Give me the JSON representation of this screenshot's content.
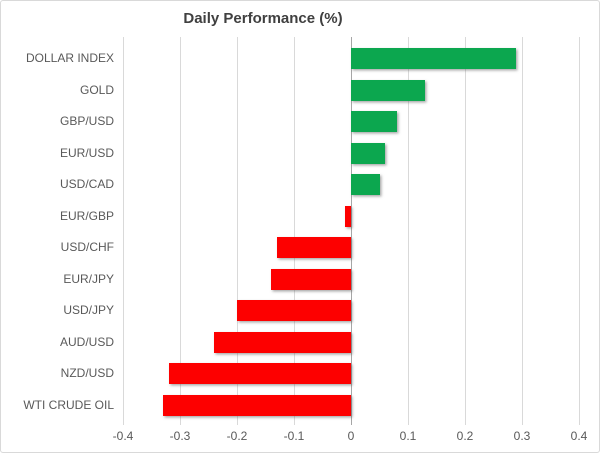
{
  "chart_data": {
    "type": "bar",
    "orientation": "horizontal",
    "title": "Daily Performance (%)",
    "categories": [
      "DOLLAR INDEX",
      "GOLD",
      "GBP/USD",
      "EUR/USD",
      "USD/CAD",
      "EUR/GBP",
      "USD/CHF",
      "EUR/JPY",
      "USD/JPY",
      "AUD/USD",
      "NZD/USD",
      "WTI CRUDE OIL"
    ],
    "values": [
      0.29,
      0.13,
      0.08,
      0.06,
      0.05,
      -0.01,
      -0.13,
      -0.14,
      -0.2,
      -0.24,
      -0.32,
      -0.33
    ],
    "xlim": [
      -0.4,
      0.4
    ],
    "x_ticks": [
      "-0.4",
      "-0.3",
      "-0.2",
      "-0.1",
      "0",
      "0.1",
      "0.2",
      "0.3",
      "0.4"
    ],
    "grid": true,
    "legend": "none",
    "colors": {
      "positive": "#0ca74f",
      "negative": "#fd0000",
      "gridline": "#d9d9d9",
      "zero_line": "#a6a6a6",
      "label_text": "#595959",
      "title_text": "#404040",
      "background": "#ffffff",
      "border": "#d9d9d9"
    }
  }
}
